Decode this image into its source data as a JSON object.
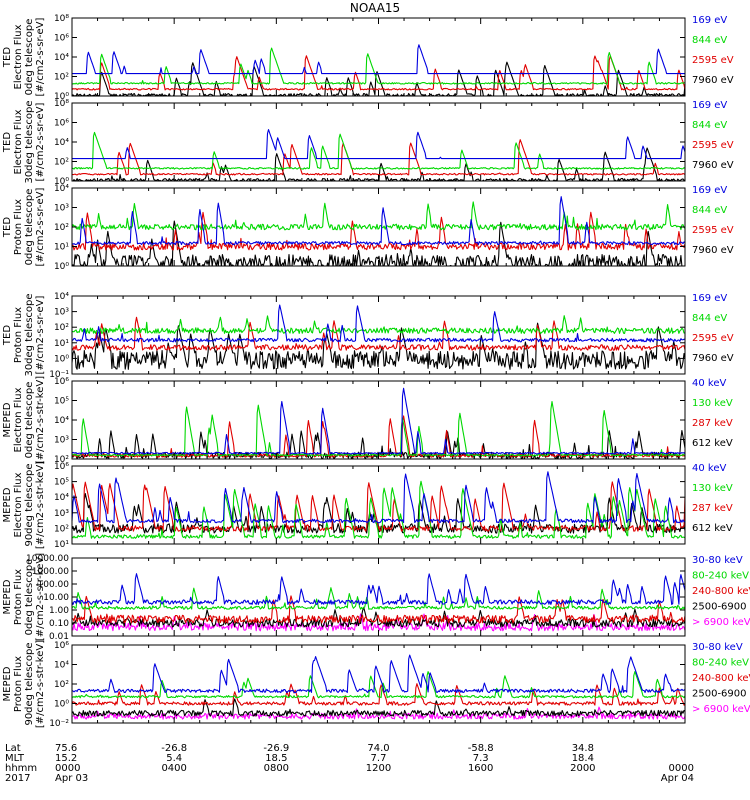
{
  "title": "NOAA15",
  "colors": {
    "black": "#000000",
    "red": "#e00000",
    "green": "#00d800",
    "blue": "#0000e0",
    "magenta": "#ff00ff"
  },
  "chart_data": [
    {
      "type": "line",
      "panel": "ted-electron-0",
      "ylabel": [
        "TED",
        "Electron Flux",
        "0deg telescope",
        "[#/cm2-s-sr-eV]"
      ],
      "ytick_labels": [
        "10⁰",
        "10²",
        "10⁴",
        "10⁶",
        "10⁸"
      ],
      "ylim": [
        1,
        100000000
      ],
      "yscale": "log",
      "series": [
        {
          "name": "7960 eV",
          "color": "#000000",
          "baseline": 1.2,
          "peak": 3000,
          "noise": 1.5,
          "spike_rate": 0.03
        },
        {
          "name": "2595 eV",
          "color": "#e00000",
          "baseline": 5,
          "peak": 20000,
          "noise": 1.2,
          "spike_rate": 0.025
        },
        {
          "name": "844 eV",
          "color": "#00d800",
          "baseline": 20,
          "peak": 100000,
          "noise": 1.2,
          "spike_rate": 0.02
        },
        {
          "name": "169 eV",
          "color": "#0000e0",
          "baseline": 200,
          "peak": 200000,
          "noise": 1.0,
          "spike_rate": 0.02
        }
      ]
    },
    {
      "type": "line",
      "panel": "ted-electron-30",
      "ylabel": [
        "TED",
        "Electron Flux",
        "30deg telescope",
        "[#/cm2-s-sr-eV]"
      ],
      "ytick_labels": [
        "10⁰",
        "10²",
        "10⁴",
        "10⁶",
        "10⁸"
      ],
      "ylim": [
        1,
        100000000
      ],
      "yscale": "log",
      "series": [
        {
          "name": "7960 eV",
          "color": "#000000",
          "baseline": 1.2,
          "peak": 3000,
          "noise": 1.5,
          "spike_rate": 0.03
        },
        {
          "name": "2595 eV",
          "color": "#e00000",
          "baseline": 5,
          "peak": 20000,
          "noise": 1.2,
          "spike_rate": 0.025
        },
        {
          "name": "844 eV",
          "color": "#00d800",
          "baseline": 20,
          "peak": 100000,
          "noise": 1.2,
          "spike_rate": 0.02
        },
        {
          "name": "169 eV",
          "color": "#0000e0",
          "baseline": 200,
          "peak": 200000,
          "noise": 1.0,
          "spike_rate": 0.02
        }
      ]
    },
    {
      "type": "line",
      "panel": "ted-proton-0",
      "ylabel": [
        "TED",
        "Proton Flux",
        "0deg telescope",
        "[#/cm2-s-sr-eV]"
      ],
      "ytick_labels": [
        "10⁰",
        "10¹",
        "10²",
        "10³",
        "10⁴"
      ],
      "ylim": [
        1,
        10000
      ],
      "yscale": "log",
      "series": [
        {
          "name": "7960 eV",
          "color": "#000000",
          "baseline": 1.3,
          "peak": 200,
          "noise": 3,
          "spike_rate": 0.04
        },
        {
          "name": "2595 eV",
          "color": "#e00000",
          "baseline": 10,
          "peak": 1000,
          "noise": 1.5,
          "spike_rate": 0.03
        },
        {
          "name": "844 eV",
          "color": "#00d800",
          "baseline": 100,
          "peak": 2000,
          "noise": 1.4,
          "spike_rate": 0.03
        },
        {
          "name": "169 eV",
          "color": "#0000e0",
          "baseline": 15,
          "peak": 10000,
          "noise": 1.2,
          "spike_rate": 0.015
        }
      ]
    },
    {
      "type": "line",
      "panel": "ted-proton-30",
      "ylabel": [
        "TED",
        "Proton Flux",
        "30deg telescope",
        "[#/cm2-s-sr-eV]"
      ],
      "ytick_labels": [
        "10⁻¹",
        "10⁰",
        "10¹",
        "10²",
        "10³",
        "10⁴"
      ],
      "ylim": [
        0.1,
        10000
      ],
      "yscale": "log",
      "series": [
        {
          "name": "7960 eV",
          "color": "#000000",
          "baseline": 0.8,
          "peak": 200,
          "noise": 4,
          "spike_rate": 0.04
        },
        {
          "name": "2595 eV",
          "color": "#e00000",
          "baseline": 5,
          "peak": 1000,
          "noise": 1.5,
          "spike_rate": 0.03
        },
        {
          "name": "844 eV",
          "color": "#00d800",
          "baseline": 60,
          "peak": 1000,
          "noise": 1.5,
          "spike_rate": 0.03
        },
        {
          "name": "169 eV",
          "color": "#0000e0",
          "baseline": 15,
          "peak": 3000,
          "noise": 1.3,
          "spike_rate": 0.015
        }
      ]
    },
    {
      "type": "line",
      "panel": "meped-electron-0",
      "ylabel": [
        "MEPED",
        "Electron Flux",
        "0deg telescope",
        "[#/cm2-s-str-keV]"
      ],
      "ytick_labels": [
        "10²",
        "10³",
        "10⁴",
        "10⁵",
        "10⁶"
      ],
      "ylim": [
        100,
        1000000
      ],
      "yscale": "log",
      "series": [
        {
          "name": "612 keV",
          "color": "#000000",
          "baseline": 150,
          "peak": 3000,
          "noise": 1.5,
          "spike_rate": 0.03
        },
        {
          "name": "287 keV",
          "color": "#e00000",
          "baseline": 150,
          "peak": 20000,
          "noise": 1.2,
          "spike_rate": 0.02
        },
        {
          "name": "130 keV",
          "color": "#00d800",
          "baseline": 160,
          "peak": 100000,
          "noise": 1.1,
          "spike_rate": 0.02
        },
        {
          "name": "40 keV",
          "color": "#0000e0",
          "baseline": 200,
          "peak": 800000,
          "noise": 1.1,
          "spike_rate": 0.02
        }
      ]
    },
    {
      "type": "line",
      "panel": "meped-electron-90",
      "ylabel": [
        "MEPED",
        "Electron Flux",
        "90deg telescope",
        "[#/cm2-s-str-keV]"
      ],
      "ytick_labels": [
        "10¹",
        "10²",
        "10³",
        "10⁴",
        "10⁵",
        "10⁶"
      ],
      "ylim": [
        10,
        1000000
      ],
      "yscale": "log",
      "series": [
        {
          "name": "612 keV",
          "color": "#000000",
          "baseline": 100,
          "peak": 30000,
          "noise": 2,
          "spike_rate": 0.05
        },
        {
          "name": "287 keV",
          "color": "#e00000",
          "baseline": 100,
          "peak": 100000,
          "noise": 1.5,
          "spike_rate": 0.05
        },
        {
          "name": "130 keV",
          "color": "#00d800",
          "baseline": 30,
          "peak": 200000,
          "noise": 1.3,
          "spike_rate": 0.05
        },
        {
          "name": "40 keV",
          "color": "#0000e0",
          "baseline": 300,
          "peak": 500000,
          "noise": 1.3,
          "spike_rate": 0.05
        }
      ]
    },
    {
      "type": "line",
      "panel": "meped-proton-0",
      "ylabel": [
        "MEPED",
        "Proton Flux",
        "0deg telescope",
        "[#/cm2-s-str-keV]"
      ],
      "ytick_labels": [
        "0.01",
        "0.10",
        "1.00",
        "10.00",
        "100.00",
        "1000.00",
        "10000.00"
      ],
      "ylim": [
        0.01,
        10000
      ],
      "yscale": "log",
      "series": [
        {
          "name": "> 6900 keV",
          "color": "#ff00ff",
          "baseline": 0.05,
          "peak": 0.5,
          "noise": 2,
          "spike_rate": 0.02
        },
        {
          "name": "2500-6900",
          "color": "#000000",
          "baseline": 0.1,
          "peak": 2,
          "noise": 2,
          "spike_rate": 0.03
        },
        {
          "name": "240-800 keV",
          "color": "#e00000",
          "baseline": 0.2,
          "peak": 20,
          "noise": 2,
          "spike_rate": 0.03
        },
        {
          "name": "80-240 keV",
          "color": "#00d800",
          "baseline": 1.5,
          "peak": 60,
          "noise": 1.3,
          "spike_rate": 0.03
        },
        {
          "name": "30-80 keV",
          "color": "#0000e0",
          "baseline": 4,
          "peak": 800,
          "noise": 1.5,
          "spike_rate": 0.04
        }
      ]
    },
    {
      "type": "line",
      "panel": "meped-proton-90",
      "ylabel": [
        "MEPED",
        "Proton Flux",
        "90deg telescope",
        "[#/cm2-s-str-keV]"
      ],
      "ytick_labels": [
        "10⁻²",
        "10⁰",
        "10²",
        "10⁴",
        "10⁶"
      ],
      "ylim": [
        0.01,
        1000000
      ],
      "yscale": "log",
      "series": [
        {
          "name": "> 6900 keV",
          "color": "#ff00ff",
          "baseline": 0.05,
          "peak": 0.5,
          "noise": 2,
          "spike_rate": 0.02
        },
        {
          "name": "2500-6900",
          "color": "#000000",
          "baseline": 0.1,
          "peak": 5,
          "noise": 2,
          "spike_rate": 0.03
        },
        {
          "name": "240-800 keV",
          "color": "#e00000",
          "baseline": 1,
          "peak": 200,
          "noise": 1.5,
          "spike_rate": 0.03
        },
        {
          "name": "80-240 keV",
          "color": "#00d800",
          "baseline": 5,
          "peak": 2000,
          "noise": 1.3,
          "spike_rate": 0.03
        },
        {
          "name": "30-80 keV",
          "color": "#0000e0",
          "baseline": 20,
          "peak": 100000,
          "noise": 1.5,
          "spike_rate": 0.04
        }
      ]
    }
  ],
  "xaxis": {
    "rows": [
      {
        "label": "Lat",
        "values": [
          "75.6",
          "-26.8",
          "-26.9",
          "74.0",
          "-58.8",
          "34.8"
        ]
      },
      {
        "label": "MLT",
        "values": [
          "15.2",
          "5.4",
          "18.5",
          "7.7",
          "7.3",
          "18.4"
        ]
      },
      {
        "label": "hhmm",
        "values": [
          "0000",
          "0400",
          "0800",
          "1200",
          "1600",
          "2000",
          "0000"
        ]
      },
      {
        "label": "2017",
        "values": [
          "Apr 03",
          "",
          "",
          "",
          "",
          "",
          "Apr 04"
        ]
      }
    ]
  }
}
